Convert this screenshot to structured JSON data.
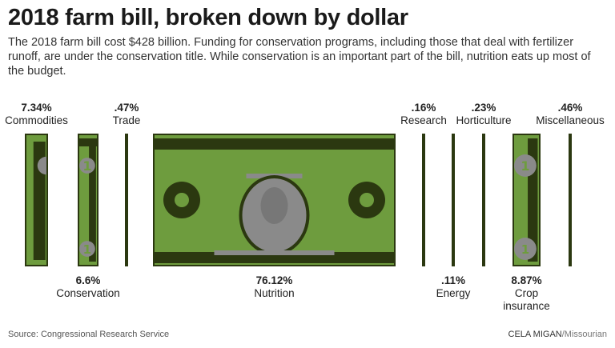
{
  "title": "2018 farm bill, broken down by dollar",
  "subtitle": "The 2018 farm bill cost $428 billion. Funding for conservation programs, including those that deal with fertilizer runoff, are under the conservation title. While conservation is an important part of the bill, nutrition eats up most of the budget.",
  "source": "Source: Congressional Research Service",
  "credit": {
    "name": "CELA MIGAN",
    "outlet": "/Missourian"
  },
  "colors": {
    "bill_green": "#6e9c3e",
    "bill_dark": "#2b3810",
    "portrait": "#8a8a8a"
  },
  "chart_data": {
    "type": "bar",
    "unit": "%",
    "categories": [
      "Commodities",
      "Conservation",
      "Trade",
      "Nutrition",
      "Research",
      "Energy",
      "Horticulture",
      "Crop insurance",
      "Miscellaneous"
    ],
    "values": [
      7.34,
      6.6,
      0.47,
      76.12,
      0.16,
      0.11,
      0.23,
      8.87,
      0.46
    ],
    "value_labels": [
      "7.34%",
      "6.6%",
      ".47%",
      "76.12%",
      ".16%",
      ".11%",
      ".23%",
      "8.87%",
      ".46%"
    ]
  }
}
